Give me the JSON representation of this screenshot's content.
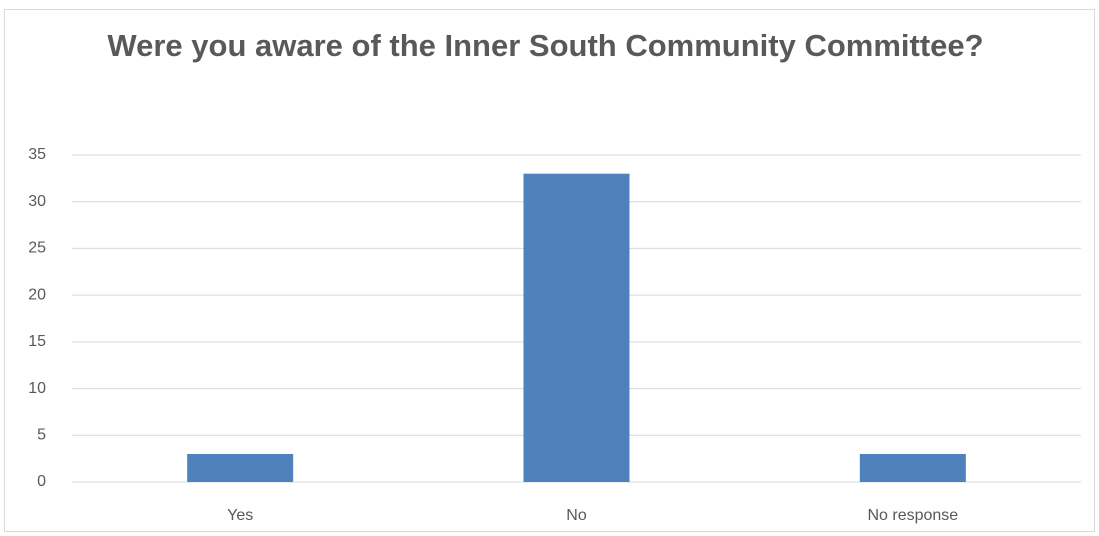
{
  "chart_data": {
    "type": "bar",
    "title": "Were you aware of the Inner South Community Committee?",
    "categories": [
      "Yes",
      "No",
      "No response"
    ],
    "values": [
      3,
      33,
      3
    ],
    "ylim": [
      0,
      35
    ],
    "yticks": [
      0,
      5,
      10,
      15,
      20,
      25,
      30,
      35
    ],
    "xlabel": "",
    "ylabel": "",
    "grid": true,
    "legend": "none",
    "colors": {
      "bar": "#4f81bd",
      "grid": "#d9d9d9",
      "text": "#595959"
    }
  }
}
